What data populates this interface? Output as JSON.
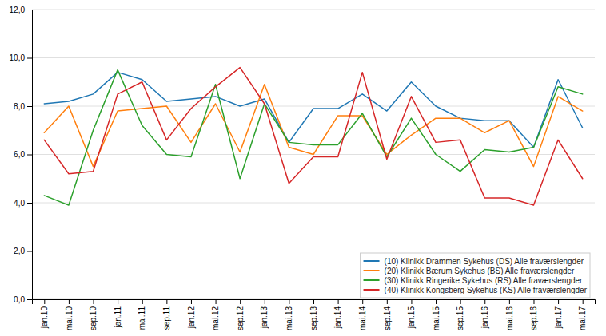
{
  "chart_data": {
    "type": "line",
    "categories": [
      "jan.10",
      "mai.10",
      "sep.10",
      "jan.11",
      "mai.11",
      "sep.11",
      "jan.12",
      "mai.12",
      "sep.12",
      "jan.13",
      "mai.13",
      "sep.13",
      "jan.14",
      "mai.14",
      "sep.14",
      "jan.15",
      "mai.15",
      "sep.15",
      "jan.16",
      "mai.16",
      "sep.16",
      "jan.17",
      "mai.17"
    ],
    "series": [
      {
        "name": "(10) Klinikk Drammen Sykehus (DS) Alle fraværslengder",
        "values": [
          8.1,
          8.2,
          8.5,
          9.4,
          9.1,
          8.2,
          8.3,
          8.4,
          8.0,
          8.3,
          6.5,
          7.9,
          7.9,
          8.5,
          7.8,
          9.0,
          8.0,
          7.5,
          7.4,
          7.4,
          6.3,
          9.1,
          7.1
        ]
      },
      {
        "name": "(20) Klinikk Bærum Sykehus (BS) Alle fraværslengder",
        "values": [
          6.9,
          8.0,
          5.5,
          7.8,
          7.9,
          8.0,
          6.5,
          8.1,
          6.1,
          8.9,
          6.3,
          6.0,
          7.6,
          7.6,
          6.0,
          6.8,
          7.5,
          7.5,
          6.9,
          7.4,
          5.5,
          8.4,
          7.8
        ]
      },
      {
        "name": "(30) Klinikk Ringerike Sykehus (RS) Alle fraværslengder",
        "values": [
          4.3,
          3.9,
          7.0,
          9.5,
          7.2,
          6.0,
          5.9,
          8.9,
          5.0,
          8.1,
          6.5,
          6.4,
          6.4,
          7.7,
          5.9,
          7.5,
          6.0,
          5.3,
          6.2,
          6.1,
          6.3,
          8.8,
          8.5
        ]
      },
      {
        "name": "(40) Klinikk Kongsberg Sykehus (KS) Alle fraværslengder",
        "values": [
          6.6,
          5.2,
          5.3,
          8.5,
          9.0,
          6.6,
          7.9,
          8.8,
          9.6,
          8.1,
          4.8,
          5.9,
          5.9,
          9.4,
          5.8,
          8.4,
          6.5,
          6.6,
          4.2,
          4.2,
          3.9,
          6.6,
          5.0
        ]
      }
    ],
    "ylim": [
      0,
      12
    ],
    "yticks": [
      {
        "value": 0,
        "label": "0,0"
      },
      {
        "value": 2,
        "label": "2,0"
      },
      {
        "value": 4,
        "label": "4,0"
      },
      {
        "value": 6,
        "label": "6,0"
      },
      {
        "value": 8,
        "label": "8,0"
      },
      {
        "value": 10,
        "label": "10,0"
      },
      {
        "value": 12,
        "label": "12,0"
      }
    ],
    "grid": true,
    "legend": "lower right"
  }
}
